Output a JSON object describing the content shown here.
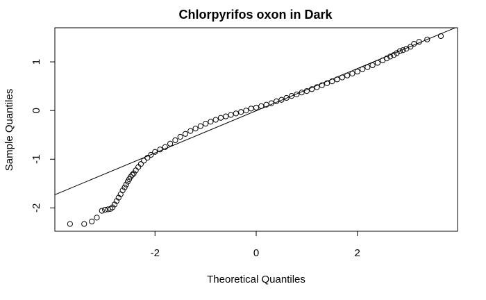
{
  "chart_data": {
    "type": "scatter",
    "title": "Chlorpyrifos oxon in Dark",
    "xlabel": "Theoretical Quantiles",
    "ylabel": "Sample Quantiles",
    "xlim": [
      -3.98,
      3.98
    ],
    "ylim": [
      -2.48,
      1.7
    ],
    "xticks": [
      -2,
      0,
      2
    ],
    "xtick_labels": [
      "-2",
      "0",
      "2"
    ],
    "yticks": [
      -2,
      -1,
      0,
      1
    ],
    "ytick_labels": [
      "-2",
      "-1",
      "0",
      "1"
    ],
    "grid": false,
    "legend": "none",
    "marker": "open-circle",
    "colors": {
      "points": "#000000",
      "line": "#000000",
      "frame": "#000000"
    },
    "reference_line": {
      "x": [
        -3.98,
        3.98
      ],
      "y": [
        -1.73,
        1.72
      ]
    },
    "points": {
      "x": [
        -3.68,
        -3.4,
        -3.25,
        -3.15,
        -3.05,
        -2.99,
        -2.93,
        -2.88,
        -2.84,
        -2.8,
        -2.76,
        -2.72,
        -2.68,
        -2.64,
        -2.6,
        -2.57,
        -2.54,
        -2.51,
        -2.48,
        -2.45,
        -2.42,
        -2.38,
        -2.33,
        -2.28,
        -2.22,
        -2.15,
        -2.08,
        -2.0,
        -1.9,
        -1.8,
        -1.7,
        -1.6,
        -1.5,
        -1.4,
        -1.3,
        -1.2,
        -1.1,
        -1.0,
        -0.9,
        -0.8,
        -0.7,
        -0.6,
        -0.5,
        -0.4,
        -0.3,
        -0.2,
        -0.1,
        0.0,
        0.1,
        0.2,
        0.3,
        0.4,
        0.5,
        0.6,
        0.7,
        0.8,
        0.9,
        1.0,
        1.1,
        1.2,
        1.3,
        1.4,
        1.5,
        1.6,
        1.7,
        1.8,
        1.9,
        2.0,
        2.1,
        2.2,
        2.3,
        2.4,
        2.5,
        2.58,
        2.65,
        2.72,
        2.78,
        2.84,
        2.9,
        2.97,
        3.05,
        3.12,
        3.22,
        3.38,
        3.65
      ],
      "y": [
        -2.33,
        -2.33,
        -2.28,
        -2.2,
        -2.06,
        -2.04,
        -2.03,
        -2.02,
        -1.99,
        -1.93,
        -1.86,
        -1.79,
        -1.72,
        -1.64,
        -1.58,
        -1.52,
        -1.46,
        -1.41,
        -1.36,
        -1.32,
        -1.29,
        -1.23,
        -1.16,
        -1.1,
        -1.03,
        -0.97,
        -0.91,
        -0.85,
        -0.8,
        -0.75,
        -0.68,
        -0.61,
        -0.54,
        -0.48,
        -0.42,
        -0.37,
        -0.32,
        -0.27,
        -0.23,
        -0.19,
        -0.15,
        -0.12,
        -0.09,
        -0.06,
        -0.03,
        0.0,
        0.04,
        0.06,
        0.09,
        0.12,
        0.15,
        0.19,
        0.22,
        0.26,
        0.3,
        0.33,
        0.37,
        0.4,
        0.44,
        0.48,
        0.52,
        0.56,
        0.6,
        0.64,
        0.68,
        0.72,
        0.76,
        0.8,
        0.85,
        0.89,
        0.93,
        0.98,
        1.03,
        1.07,
        1.11,
        1.14,
        1.18,
        1.22,
        1.24,
        1.27,
        1.31,
        1.37,
        1.41,
        1.46,
        1.53
      ]
    }
  }
}
